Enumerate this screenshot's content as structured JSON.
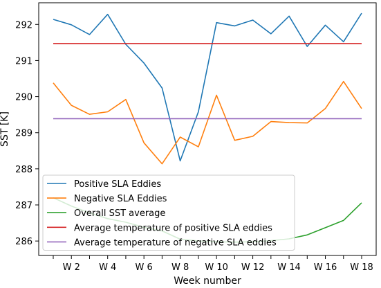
{
  "chart_data": {
    "type": "line",
    "xlabel": "Week number",
    "ylabel": "SST [K]",
    "x": [
      1,
      2,
      3,
      4,
      5,
      6,
      7,
      8,
      9,
      10,
      11,
      12,
      13,
      14,
      15,
      16,
      17,
      18
    ],
    "x_ticks": [
      {
        "value": 2,
        "label": "W 2"
      },
      {
        "value": 4,
        "label": "W 4"
      },
      {
        "value": 6,
        "label": "W 6"
      },
      {
        "value": 8,
        "label": "W 8"
      },
      {
        "value": 10,
        "label": "W 10"
      },
      {
        "value": 12,
        "label": "W 12"
      },
      {
        "value": 14,
        "label": "W 14"
      },
      {
        "value": 16,
        "label": "W 16"
      },
      {
        "value": 18,
        "label": "W 18"
      }
    ],
    "y_ticks": [
      286,
      287,
      288,
      289,
      290,
      291,
      292
    ],
    "xlim": [
      0.2,
      18.8
    ],
    "ylim": [
      285.6,
      292.6
    ],
    "grid": false,
    "legend_position": "lower-left",
    "series": [
      {
        "name": "Positive SLA Eddies",
        "color": "#1f77b4",
        "values": [
          292.14,
          291.99,
          291.72,
          292.28,
          291.45,
          290.93,
          290.24,
          288.22,
          289.58,
          292.05,
          291.96,
          292.12,
          291.74,
          292.23,
          291.39,
          291.98,
          291.52,
          292.31
        ]
      },
      {
        "name": "Negative SLA Eddies",
        "color": "#ff7f0e",
        "values": [
          290.38,
          289.76,
          289.51,
          289.58,
          289.92,
          288.72,
          288.14,
          288.88,
          288.61,
          290.04,
          288.79,
          288.9,
          289.31,
          289.28,
          289.27,
          289.67,
          290.42,
          289.67
        ]
      },
      {
        "name": "Overall SST average",
        "color": "#2ca02c",
        "values": [
          287.2,
          286.97,
          286.78,
          286.62,
          286.52,
          286.38,
          286.28,
          286.05,
          286.0,
          285.98,
          285.97,
          285.98,
          286.01,
          286.06,
          286.17,
          286.37,
          286.57,
          287.06
        ]
      },
      {
        "name": "Average temperature of positive SLA eddies",
        "color": "#d62728",
        "values": [
          291.47,
          291.47,
          291.47,
          291.47,
          291.47,
          291.47,
          291.47,
          291.47,
          291.47,
          291.47,
          291.47,
          291.47,
          291.47,
          291.47,
          291.47,
          291.47,
          291.47,
          291.47
        ]
      },
      {
        "name": "Average temperature of negative SLA eddies",
        "color": "#9467bd",
        "values": [
          289.39,
          289.39,
          289.39,
          289.39,
          289.39,
          289.39,
          289.39,
          289.39,
          289.39,
          289.39,
          289.39,
          289.39,
          289.39,
          289.39,
          289.39,
          289.39,
          289.39,
          289.39
        ]
      }
    ]
  }
}
